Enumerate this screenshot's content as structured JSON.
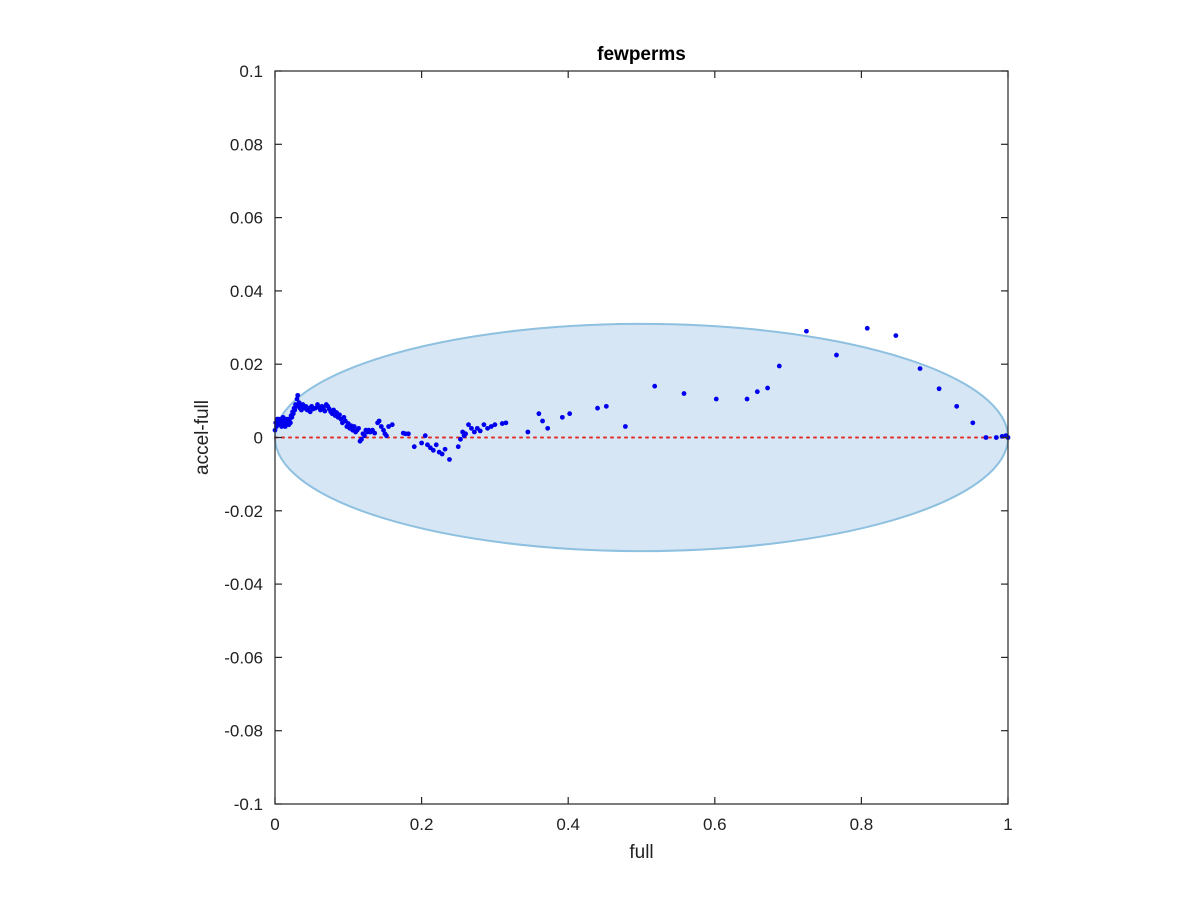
{
  "chart_data": {
    "type": "scatter",
    "title": "fewperms",
    "xlabel": "full",
    "ylabel": "accel-full",
    "xlim": [
      0,
      1
    ],
    "ylim": [
      -0.1,
      0.1
    ],
    "grid": false,
    "xticks": [
      0,
      0.2,
      0.4,
      0.6,
      0.8,
      1
    ],
    "xtick_labels": [
      "0",
      "0.2",
      "0.4",
      "0.6",
      "0.8",
      "1"
    ],
    "yticks": [
      -0.1,
      -0.08,
      -0.06,
      -0.04,
      -0.02,
      0,
      0.02,
      0.04,
      0.06,
      0.08,
      0.1
    ],
    "ytick_labels": [
      "-0.1",
      "-0.08",
      "-0.06",
      "-0.04",
      "-0.02",
      "0",
      "0.02",
      "0.04",
      "0.06",
      "0.08",
      "0.1"
    ],
    "ellipse": {
      "center": [
        0.5,
        0.0
      ],
      "x_radius": 0.5,
      "y_radius": 0.031,
      "fill": "#d6e6f4",
      "stroke": "#8ec0e0"
    },
    "reference_line": {
      "y": 0,
      "style": "dotted",
      "color": "#e0302c"
    },
    "series": [
      {
        "color": "#0000ee",
        "points": [
          [
            0.0,
            0.002
          ],
          [
            0.001,
            0.004
          ],
          [
            0.002,
            0.003
          ],
          [
            0.003,
            0.005
          ],
          [
            0.004,
            0.0035
          ],
          [
            0.005,
            0.005
          ],
          [
            0.006,
            0.004
          ],
          [
            0.007,
            0.0045
          ],
          [
            0.008,
            0.005
          ],
          [
            0.009,
            0.003
          ],
          [
            0.01,
            0.004
          ],
          [
            0.011,
            0.0055
          ],
          [
            0.012,
            0.005
          ],
          [
            0.013,
            0.004
          ],
          [
            0.014,
            0.003
          ],
          [
            0.015,
            0.005
          ],
          [
            0.016,
            0.0045
          ],
          [
            0.017,
            0.004
          ],
          [
            0.018,
            0.005
          ],
          [
            0.019,
            0.0035
          ],
          [
            0.02,
            0.005
          ],
          [
            0.021,
            0.004
          ],
          [
            0.022,
            0.006
          ],
          [
            0.023,
            0.0055
          ],
          [
            0.024,
            0.007
          ],
          [
            0.025,
            0.0065
          ],
          [
            0.026,
            0.008
          ],
          [
            0.027,
            0.0075
          ],
          [
            0.028,
            0.009
          ],
          [
            0.029,
            0.0085
          ],
          [
            0.03,
            0.0105
          ],
          [
            0.031,
            0.0115
          ],
          [
            0.032,
            0.009
          ],
          [
            0.033,
            0.0095
          ],
          [
            0.034,
            0.008
          ],
          [
            0.035,
            0.0085
          ],
          [
            0.036,
            0.0075
          ],
          [
            0.038,
            0.009
          ],
          [
            0.04,
            0.008
          ],
          [
            0.042,
            0.0085
          ],
          [
            0.044,
            0.0075
          ],
          [
            0.046,
            0.008
          ],
          [
            0.048,
            0.007
          ],
          [
            0.05,
            0.0085
          ],
          [
            0.052,
            0.0078
          ],
          [
            0.055,
            0.008
          ],
          [
            0.058,
            0.009
          ],
          [
            0.06,
            0.0082
          ],
          [
            0.062,
            0.0075
          ],
          [
            0.064,
            0.0085
          ],
          [
            0.066,
            0.008
          ],
          [
            0.068,
            0.0072
          ],
          [
            0.07,
            0.009
          ],
          [
            0.072,
            0.0085
          ],
          [
            0.074,
            0.0078
          ],
          [
            0.076,
            0.007
          ],
          [
            0.078,
            0.0065
          ],
          [
            0.08,
            0.0075
          ],
          [
            0.082,
            0.006
          ],
          [
            0.084,
            0.0068
          ],
          [
            0.086,
            0.0055
          ],
          [
            0.088,
            0.0062
          ],
          [
            0.09,
            0.005
          ],
          [
            0.092,
            0.004
          ],
          [
            0.094,
            0.0055
          ],
          [
            0.096,
            0.0045
          ],
          [
            0.098,
            0.003
          ],
          [
            0.1,
            0.0038
          ],
          [
            0.102,
            0.0025
          ],
          [
            0.104,
            0.0032
          ],
          [
            0.106,
            0.002
          ],
          [
            0.108,
            0.003
          ],
          [
            0.11,
            0.0015
          ],
          [
            0.112,
            0.002
          ],
          [
            0.114,
            0.0025
          ],
          [
            0.116,
            -0.001
          ],
          [
            0.118,
            -0.0005
          ],
          [
            0.12,
            0.001
          ],
          [
            0.122,
            0.0005
          ],
          [
            0.124,
            0.002
          ],
          [
            0.126,
            0.0015
          ],
          [
            0.128,
            0.002
          ],
          [
            0.13,
            0.0015
          ],
          [
            0.133,
            0.002
          ],
          [
            0.136,
            0.0012
          ],
          [
            0.14,
            0.004
          ],
          [
            0.142,
            0.0045
          ],
          [
            0.145,
            0.003
          ],
          [
            0.148,
            0.002
          ],
          [
            0.15,
            0.001
          ],
          [
            0.152,
            0.0005
          ],
          [
            0.155,
            0.003
          ],
          [
            0.16,
            0.0035
          ],
          [
            0.175,
            0.0012
          ],
          [
            0.178,
            0.001
          ],
          [
            0.182,
            0.001
          ],
          [
            0.19,
            -0.0025
          ],
          [
            0.2,
            -0.0015
          ],
          [
            0.205,
            0.0005
          ],
          [
            0.208,
            -0.002
          ],
          [
            0.212,
            -0.0028
          ],
          [
            0.216,
            -0.0035
          ],
          [
            0.22,
            -0.002
          ],
          [
            0.224,
            -0.004
          ],
          [
            0.228,
            -0.0045
          ],
          [
            0.232,
            -0.0032
          ],
          [
            0.238,
            -0.006
          ],
          [
            0.25,
            -0.0025
          ],
          [
            0.253,
            -0.0005
          ],
          [
            0.256,
            0.0015
          ],
          [
            0.258,
            0.0005
          ],
          [
            0.26,
            0.001
          ],
          [
            0.264,
            0.0035
          ],
          [
            0.268,
            0.0025
          ],
          [
            0.272,
            0.0015
          ],
          [
            0.276,
            0.0025
          ],
          [
            0.28,
            0.0018
          ],
          [
            0.285,
            0.0035
          ],
          [
            0.29,
            0.0025
          ],
          [
            0.295,
            0.003
          ],
          [
            0.3,
            0.0035
          ],
          [
            0.31,
            0.0038
          ],
          [
            0.315,
            0.004
          ],
          [
            0.345,
            0.0015
          ],
          [
            0.36,
            0.0065
          ],
          [
            0.365,
            0.0045
          ],
          [
            0.372,
            0.0025
          ],
          [
            0.392,
            0.0055
          ],
          [
            0.402,
            0.0065
          ],
          [
            0.44,
            0.008
          ],
          [
            0.452,
            0.0085
          ],
          [
            0.478,
            0.003
          ],
          [
            0.518,
            0.014
          ],
          [
            0.558,
            0.012
          ],
          [
            0.602,
            0.0105
          ],
          [
            0.644,
            0.0105
          ],
          [
            0.658,
            0.0125
          ],
          [
            0.672,
            0.0135
          ],
          [
            0.688,
            0.0195
          ],
          [
            0.725,
            0.029
          ],
          [
            0.766,
            0.0225
          ],
          [
            0.808,
            0.0298
          ],
          [
            0.847,
            0.0278
          ],
          [
            0.88,
            0.0188
          ],
          [
            0.906,
            0.0133
          ],
          [
            0.93,
            0.0085
          ],
          [
            0.952,
            0.004
          ],
          [
            0.97,
            0.0
          ],
          [
            0.984,
            0.0
          ],
          [
            0.992,
            0.0003
          ],
          [
            0.997,
            0.0005
          ],
          [
            1.0,
            0.0
          ]
        ]
      }
    ]
  }
}
